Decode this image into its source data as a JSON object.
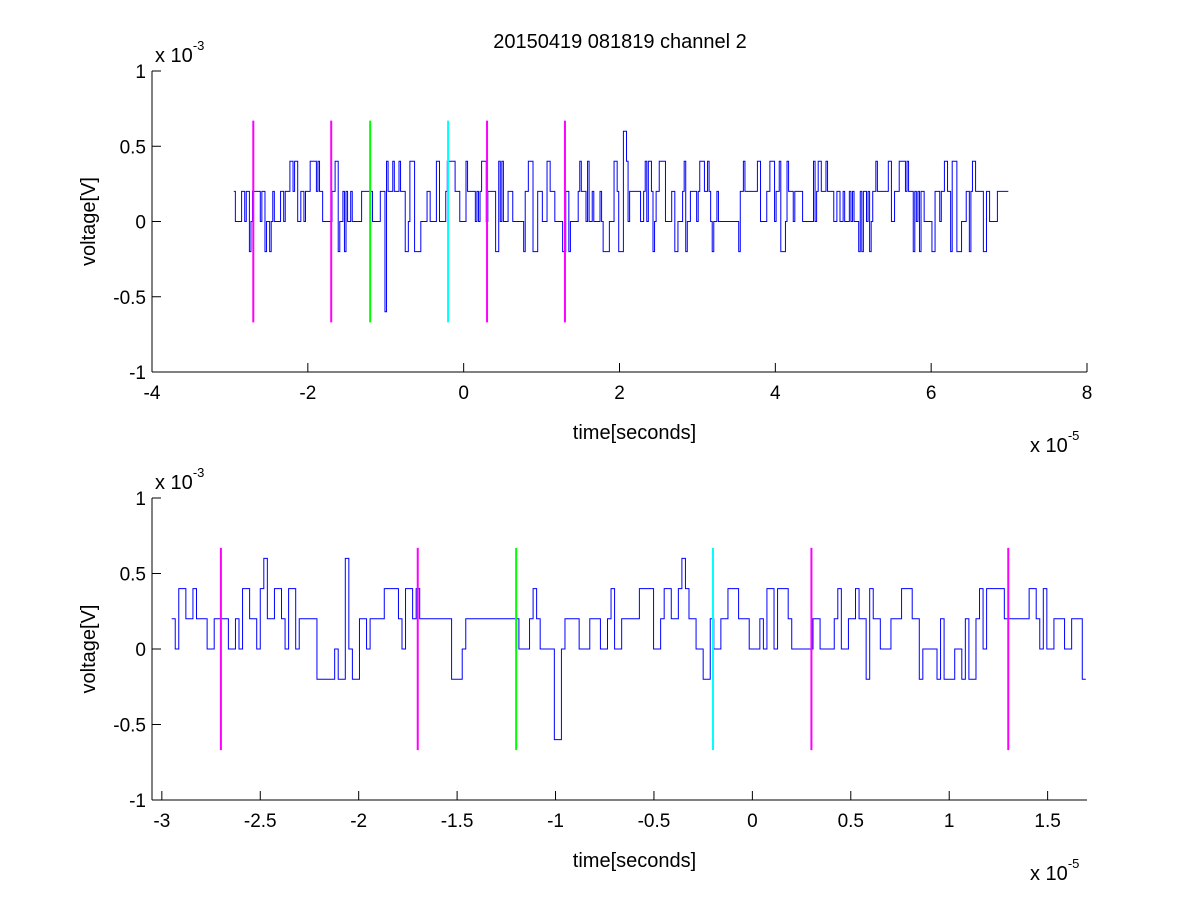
{
  "figure": {
    "title": "20150419 081819 channel 2",
    "trace_color": "#0000ff",
    "axes_color": "#000000"
  },
  "chart_data": [
    {
      "type": "line",
      "id": "overview",
      "title": "20150419 081819 channel 2",
      "xlabel": "time[seconds]",
      "ylabel": "voltage[V]",
      "xlim": [
        -4,
        8
      ],
      "ylim": [
        -1,
        1
      ],
      "x_ticks": [
        -4,
        -2,
        0,
        2,
        4,
        6,
        8
      ],
      "x_tick_labels": [
        "-4",
        "-2",
        "0",
        "2",
        "4",
        "6",
        "8"
      ],
      "y_ticks": [
        -1,
        -0.5,
        0,
        0.5,
        1
      ],
      "y_tick_labels": [
        "-1",
        "-0.5",
        "0",
        "0.5",
        "1"
      ],
      "x_multiplier": {
        "prefix": "x 10",
        "exponent": "-5"
      },
      "y_multiplier": {
        "prefix": "x 10",
        "exponent": "-3"
      },
      "grid": false,
      "signal": {
        "name": "",
        "color": "#0000ff",
        "x_start": -2.95,
        "x_end": 7.0,
        "noise_levels": [
          -0.2,
          0,
          0.2,
          0.4
        ],
        "spikes": [
          {
            "x": -1.0,
            "y": -0.6
          },
          {
            "x": 2.05,
            "y": 0.6
          },
          {
            "x": -0.35,
            "y": 0.4
          }
        ]
      },
      "markers": [
        {
          "x": -2.7,
          "y_min": -0.67,
          "y_max": 0.67,
          "color": "#ff00ff"
        },
        {
          "x": -1.7,
          "y_min": -0.67,
          "y_max": 0.67,
          "color": "#ff00ff"
        },
        {
          "x": -1.2,
          "y_min": -0.67,
          "y_max": 0.67,
          "color": "#00ff00"
        },
        {
          "x": -0.2,
          "y_min": -0.67,
          "y_max": 0.67,
          "color": "#00ffff"
        },
        {
          "x": 0.3,
          "y_min": -0.67,
          "y_max": 0.67,
          "color": "#ff00ff"
        },
        {
          "x": 1.3,
          "y_min": -0.67,
          "y_max": 0.67,
          "color": "#ff00ff"
        }
      ]
    },
    {
      "type": "line",
      "id": "zoom",
      "title": "",
      "xlabel": "time[seconds]",
      "ylabel": "voltage[V]",
      "xlim": [
        -3.05,
        1.7
      ],
      "ylim": [
        -1,
        1
      ],
      "x_ticks": [
        -3,
        -2.5,
        -2,
        -1.5,
        -1,
        -0.5,
        0,
        0.5,
        1,
        1.5
      ],
      "x_tick_labels": [
        "-3",
        "-2.5",
        "-2",
        "-1.5",
        "-1",
        "-0.5",
        "0",
        "0.5",
        "1",
        "1.5"
      ],
      "y_ticks": [
        -1,
        -0.5,
        0,
        0.5,
        1
      ],
      "y_tick_labels": [
        "-1",
        "-0.5",
        "0",
        "0.5",
        "1"
      ],
      "x_multiplier": {
        "prefix": "x 10",
        "exponent": "-5"
      },
      "y_multiplier": {
        "prefix": "x 10",
        "exponent": "-3"
      },
      "grid": false,
      "signal": {
        "name": "",
        "color": "#0000ff",
        "x_start": -2.95,
        "x_end": 1.7,
        "noise_levels": [
          -0.2,
          0,
          0.2,
          0.4
        ],
        "spikes": [
          {
            "x": -1.0,
            "y": -0.6
          },
          {
            "x": -2.48,
            "y": 0.6
          },
          {
            "x": -2.07,
            "y": 0.6
          },
          {
            "x": -0.35,
            "y": 0.6
          }
        ]
      },
      "markers": [
        {
          "x": -2.7,
          "y_min": -0.67,
          "y_max": 0.67,
          "color": "#ff00ff"
        },
        {
          "x": -1.7,
          "y_min": -0.67,
          "y_max": 0.67,
          "color": "#ff00ff"
        },
        {
          "x": -1.2,
          "y_min": -0.67,
          "y_max": 0.67,
          "color": "#00ff00"
        },
        {
          "x": -0.2,
          "y_min": -0.67,
          "y_max": 0.67,
          "color": "#00ffff"
        },
        {
          "x": 0.3,
          "y_min": -0.67,
          "y_max": 0.67,
          "color": "#ff00ff"
        },
        {
          "x": 1.3,
          "y_min": -0.67,
          "y_max": 0.67,
          "color": "#ff00ff"
        }
      ]
    }
  ]
}
